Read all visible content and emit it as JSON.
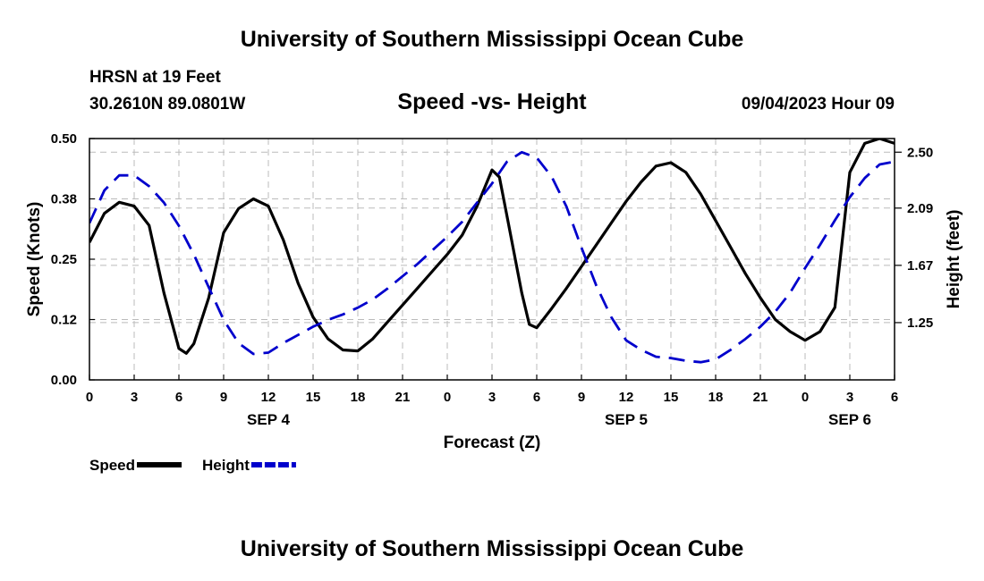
{
  "header": {
    "title": "University of Southern Mississippi Ocean Cube",
    "station": "HRSN at 19 Feet",
    "coords": "30.2610N  89.0801W",
    "subtitle": "Speed -vs- Height",
    "datetime": "09/04/2023 Hour 09"
  },
  "footer": {
    "title": "University of Southern Mississippi Ocean Cube"
  },
  "colors": {
    "speed": "#000000",
    "height": "#0000cc",
    "grid": "#bbbbbb"
  },
  "chart_data": {
    "type": "line",
    "xlabel": "Forecast (Z)",
    "ylabel_left": "Speed (Knots)",
    "ylabel_right": "Height (feet)",
    "x_unit": "hours since 2023-09-04 00Z",
    "xlim": [
      0,
      54
    ],
    "ylim_left": [
      0,
      0.5
    ],
    "ylim_right": [
      0.83,
      2.6
    ],
    "x_ticks": [
      0,
      3,
      6,
      9,
      12,
      15,
      18,
      21,
      24,
      27,
      30,
      33,
      36,
      39,
      42,
      45,
      48,
      51,
      54
    ],
    "x_tick_labels": [
      "0",
      "3",
      "6",
      "9",
      "12",
      "15",
      "18",
      "21",
      "0",
      "3",
      "6",
      "9",
      "12",
      "15",
      "18",
      "21",
      "0",
      "3",
      "6"
    ],
    "day_labels": [
      {
        "x": 12,
        "label": "SEP 4"
      },
      {
        "x": 36,
        "label": "SEP 5"
      },
      {
        "x": 51,
        "label": "SEP 6"
      }
    ],
    "left_ticks": [
      {
        "value": 0.0,
        "label": "0.00"
      },
      {
        "value": 0.125,
        "label": "0.12"
      },
      {
        "value": 0.25,
        "label": "0.25"
      },
      {
        "value": 0.375,
        "label": "0.38"
      },
      {
        "value": 0.5,
        "label": "0.50"
      }
    ],
    "right_ticks": [
      {
        "value": 1.25,
        "label": "1.25"
      },
      {
        "value": 1.67,
        "label": "1.67"
      },
      {
        "value": 2.09,
        "label": "2.09"
      },
      {
        "value": 2.5,
        "label": "2.50"
      }
    ],
    "legend": [
      {
        "key": "speed",
        "label": "Speed",
        "style": "solid"
      },
      {
        "key": "height",
        "label": "Height",
        "style": "dashed"
      }
    ],
    "series": [
      {
        "name": "Speed",
        "key": "speed",
        "axis": "left",
        "style": "solid",
        "x": [
          0,
          1,
          2,
          3,
          4,
          5,
          6,
          6.5,
          7,
          8,
          9,
          10,
          11,
          12,
          13,
          14,
          15,
          16,
          17,
          18,
          19,
          20,
          21,
          22,
          23,
          24,
          25,
          26,
          27,
          27.5,
          28,
          29,
          29.5,
          30,
          31,
          32,
          33,
          34,
          35,
          36,
          37,
          38,
          39,
          40,
          41,
          42,
          43,
          44,
          44.5,
          45,
          46,
          47,
          48,
          49,
          50,
          51,
          52,
          53,
          54
        ],
        "values": [
          0.285,
          0.345,
          0.368,
          0.36,
          0.32,
          0.18,
          0.065,
          0.055,
          0.075,
          0.17,
          0.305,
          0.355,
          0.375,
          0.36,
          0.29,
          0.2,
          0.13,
          0.085,
          0.062,
          0.06,
          0.085,
          0.12,
          0.155,
          0.19,
          0.225,
          0.26,
          0.3,
          0.36,
          0.435,
          0.42,
          0.34,
          0.18,
          0.115,
          0.108,
          0.148,
          0.19,
          0.235,
          0.28,
          0.325,
          0.37,
          0.41,
          0.443,
          0.45,
          0.43,
          0.385,
          0.33,
          0.275,
          0.22,
          0.195,
          0.17,
          0.125,
          0.1,
          0.082,
          0.1,
          0.15,
          0.43,
          0.49,
          0.5,
          0.49
        ]
      },
      {
        "name": "Height",
        "key": "height",
        "axis": "right",
        "style": "dashed",
        "x": [
          0,
          1,
          2,
          3,
          4,
          5,
          6,
          7,
          8,
          9,
          10,
          11,
          12,
          13,
          14,
          15,
          16,
          17,
          18,
          19,
          20,
          21,
          22,
          23,
          24,
          25,
          26,
          27,
          28,
          29,
          30,
          31,
          32,
          33,
          34,
          35,
          36,
          37,
          38,
          39,
          40,
          41,
          42,
          43,
          44,
          45,
          46,
          47,
          48,
          49,
          50,
          51,
          52,
          53,
          54
        ],
        "values": [
          1.98,
          2.22,
          2.33,
          2.33,
          2.25,
          2.13,
          1.96,
          1.75,
          1.51,
          1.27,
          1.1,
          1.02,
          1.03,
          1.1,
          1.16,
          1.22,
          1.27,
          1.31,
          1.36,
          1.42,
          1.5,
          1.59,
          1.68,
          1.78,
          1.88,
          1.99,
          2.13,
          2.27,
          2.43,
          2.5,
          2.46,
          2.32,
          2.1,
          1.8,
          1.52,
          1.29,
          1.12,
          1.05,
          1.0,
          0.99,
          0.97,
          0.96,
          0.98,
          1.05,
          1.13,
          1.22,
          1.33,
          1.47,
          1.65,
          1.82,
          2.0,
          2.17,
          2.31,
          2.41,
          2.43
        ]
      }
    ]
  }
}
